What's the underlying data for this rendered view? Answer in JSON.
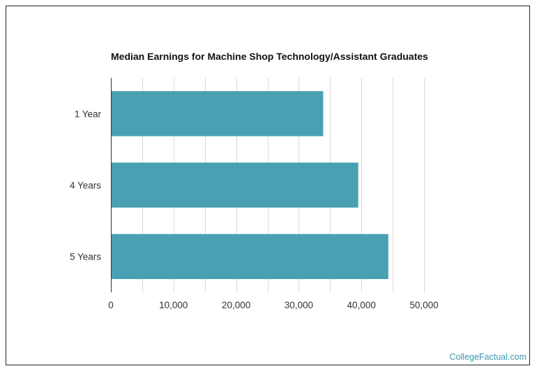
{
  "chart_data": {
    "type": "bar",
    "orientation": "horizontal",
    "title": "Median Earnings for Machine Shop Technology/Assistant Graduates",
    "categories": [
      "1 Year",
      "4 Years",
      "5 Years"
    ],
    "values": [
      33900,
      39500,
      44300
    ],
    "xlim": [
      0,
      50000
    ],
    "x_ticks": [
      0,
      10000,
      20000,
      30000,
      40000,
      50000
    ],
    "x_tick_labels": [
      "0",
      "10,000",
      "20,000",
      "30,000",
      "40,000",
      "50,000"
    ],
    "xlabel": "",
    "ylabel": "",
    "grid": true,
    "bar_color": "#4aa0b3",
    "grid_color": "#d9d9d9"
  },
  "watermark": "CollegeFactual.com"
}
